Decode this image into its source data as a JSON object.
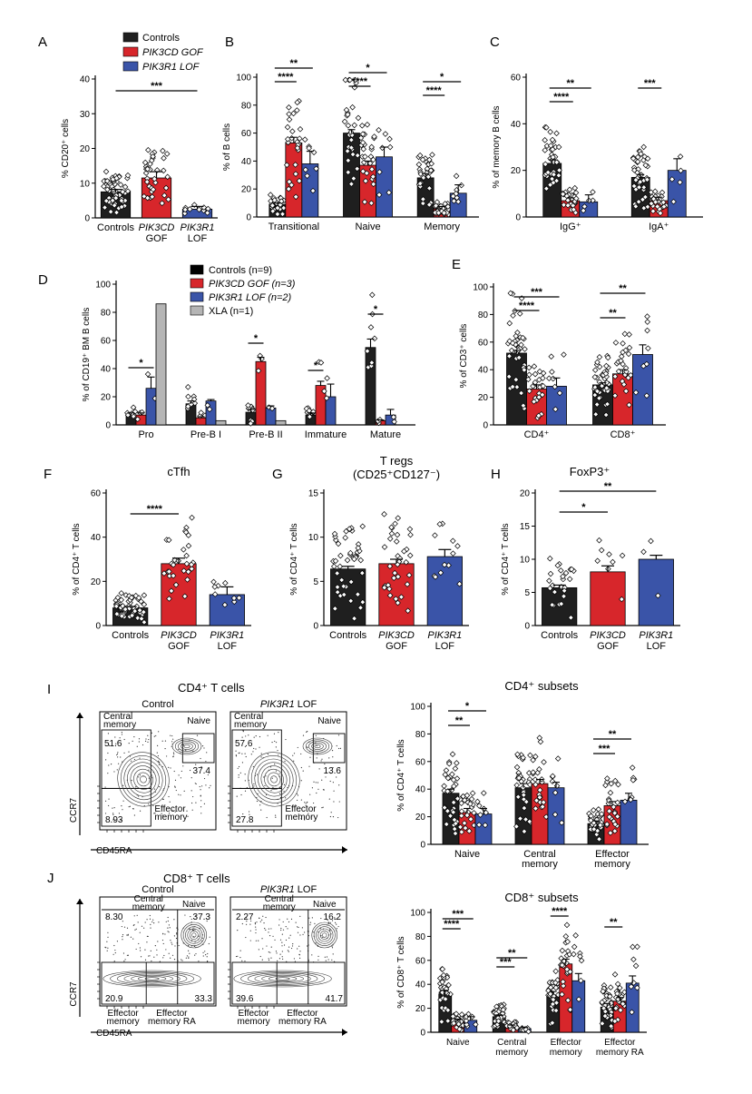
{
  "colors": {
    "controls": "#1f1f1f",
    "gof": "#d7262b",
    "lof": "#3a54a8",
    "xla": "#b5b5b5"
  },
  "legend_main": [
    {
      "label": "Controls",
      "color": "#1f1f1f",
      "italic": false
    },
    {
      "label": "PIK3CD GOF",
      "color": "#d7262b",
      "italic": true
    },
    {
      "label": "PIK3R1 LOF",
      "color": "#3a54a8",
      "italic": true
    }
  ],
  "legend_d": [
    {
      "label": "Controls (n=9)",
      "color": "#000000",
      "italic": false
    },
    {
      "label": "PIK3CD GOF (n=3)",
      "color": "#d7262b",
      "italic": true
    },
    {
      "label": "PIK3R1 LOF (n=2)",
      "color": "#3a54a8",
      "italic": true
    },
    {
      "label": "XLA (n=1)",
      "color": "#b5b5b5",
      "italic": false
    }
  ],
  "chart_data": [
    {
      "id": "A",
      "letter": "A",
      "type": "bar",
      "title": "",
      "ylabel": "% CD20⁺ cells",
      "ylim": [
        0,
        40
      ],
      "yticks": [
        0,
        10,
        20,
        30,
        40
      ],
      "categories": [
        "Controls",
        "PIK3CD\nGOF",
        "PIK3R1\nLOF"
      ],
      "values": [
        7.5,
        11.5,
        2.5
      ],
      "err": [
        0.7,
        1.8,
        0.8
      ],
      "sig": [
        {
          "from": 0,
          "to": 2,
          "label": "***"
        }
      ]
    },
    {
      "id": "B",
      "letter": "B",
      "type": "bar",
      "title": "",
      "ylabel": "% of B cells",
      "ylim": [
        0,
        100
      ],
      "yticks": [
        0,
        20,
        40,
        60,
        80,
        100
      ],
      "groups": [
        "Transitional",
        "Naive",
        "Memory"
      ],
      "series": [
        {
          "name": "Controls",
          "values": [
            9,
            60,
            28
          ],
          "err": [
            1,
            2.5,
            3
          ]
        },
        {
          "name": "PIK3CD GOF",
          "values": [
            53,
            37,
            6
          ],
          "err": [
            4,
            3,
            1.5
          ]
        },
        {
          "name": "PIK3R1 LOF",
          "values": [
            38,
            43,
            17
          ],
          "err": [
            9,
            7,
            6
          ]
        }
      ],
      "sig": [
        {
          "g": 0,
          "from": 0,
          "to": 2,
          "label": "**"
        },
        {
          "g": 0,
          "from": 0,
          "to": 1,
          "label": "****"
        },
        {
          "g": 1,
          "from": 0,
          "to": 2,
          "label": "*"
        },
        {
          "g": 1,
          "from": 0,
          "to": 1,
          "label": "****"
        },
        {
          "g": 2,
          "from": 0,
          "to": 2,
          "label": "*"
        },
        {
          "g": 2,
          "from": 0,
          "to": 1,
          "label": "****"
        }
      ]
    },
    {
      "id": "C",
      "letter": "C",
      "type": "bar",
      "title": "",
      "ylabel": "% of memory B cells",
      "ylim": [
        0,
        60
      ],
      "yticks": [
        0,
        20,
        40,
        60
      ],
      "groups": [
        "IgG⁺",
        "IgA⁺"
      ],
      "series": [
        {
          "name": "Controls",
          "values": [
            23,
            17
          ],
          "err": [
            1.5,
            1.2
          ]
        },
        {
          "name": "PIK3CD GOF",
          "values": [
            7,
            7
          ],
          "err": [
            1.2,
            1.5
          ]
        },
        {
          "name": "PIK3R1 LOF",
          "values": [
            6.5,
            20
          ],
          "err": [
            3,
            5
          ]
        }
      ],
      "sig": [
        {
          "g": 0,
          "from": 0,
          "to": 2,
          "label": "**"
        },
        {
          "g": 0,
          "from": 0,
          "to": 1,
          "label": "****"
        },
        {
          "g": 1,
          "from": 0,
          "to": 1,
          "label": "***"
        }
      ]
    },
    {
      "id": "D",
      "letter": "D",
      "type": "bar",
      "title": "",
      "ylabel": "% of CD19⁺ BM B cells",
      "ylim": [
        0,
        100
      ],
      "yticks": [
        0,
        20,
        40,
        60,
        80,
        100
      ],
      "groups": [
        "Pro",
        "Pre-B I",
        "Pre-B II",
        "Immature",
        "Mature"
      ],
      "series": [
        {
          "name": "Controls (n=9)",
          "values": [
            7,
            15,
            9,
            7,
            55
          ],
          "err": [
            1.5,
            2,
            2,
            1.5,
            6
          ]
        },
        {
          "name": "PIK3CD GOF (n=3)",
          "values": [
            7,
            5,
            45,
            28,
            3
          ],
          "err": [
            1.5,
            0.8,
            3,
            3,
            0.5
          ]
        },
        {
          "name": "PIK3R1 LOF (n=2)",
          "values": [
            26,
            17,
            12,
            20,
            7
          ],
          "err": [
            8,
            1,
            1.5,
            9,
            4
          ]
        },
        {
          "name": "XLA (n=1)",
          "values": [
            86,
            3,
            3,
            0,
            0
          ],
          "err": [
            0,
            0,
            0,
            0,
            0
          ]
        }
      ],
      "sig": [
        {
          "g": 0,
          "from": 0,
          "to": 2,
          "label": "*"
        },
        {
          "g": 2,
          "from": 0,
          "to": 1,
          "label": "*"
        },
        {
          "g": 3,
          "from": 0,
          "to": 1,
          "label": "*"
        },
        {
          "g": 4,
          "from": 0,
          "to": 1,
          "label": "*"
        }
      ]
    },
    {
      "id": "E",
      "letter": "E",
      "type": "bar",
      "title": "",
      "ylabel": "% of CD3⁺ cells",
      "ylim": [
        0,
        100
      ],
      "yticks": [
        0,
        20,
        40,
        60,
        80,
        100
      ],
      "groups": [
        "CD4⁺",
        "CD8⁺"
      ],
      "series": [
        {
          "name": "Controls",
          "values": [
            52,
            29
          ],
          "err": [
            2,
            1.5
          ]
        },
        {
          "name": "PIK3CD GOF",
          "values": [
            26,
            37
          ],
          "err": [
            3,
            3
          ]
        },
        {
          "name": "PIK3R1 LOF",
          "values": [
            28,
            51
          ],
          "err": [
            6,
            7
          ]
        }
      ],
      "sig": [
        {
          "g": 0,
          "from": 0,
          "to": 2,
          "label": "***"
        },
        {
          "g": 0,
          "from": 0,
          "to": 1,
          "label": "****"
        },
        {
          "g": 1,
          "from": 0,
          "to": 2,
          "label": "**"
        },
        {
          "g": 1,
          "from": 0,
          "to": 1,
          "label": "**"
        }
      ]
    },
    {
      "id": "F",
      "letter": "F",
      "type": "bar",
      "title": "cTfh",
      "ylabel": "% of CD4⁺ T cells",
      "ylim": [
        0,
        60
      ],
      "yticks": [
        0,
        20,
        40,
        60
      ],
      "categories": [
        "Controls",
        "PIK3CD\nGOF",
        "PIK3R1\nLOF"
      ],
      "values": [
        8,
        28,
        14
      ],
      "err": [
        0.6,
        2.5,
        3.5
      ],
      "sig": [
        {
          "from": 0,
          "to": 1,
          "label": "****"
        }
      ]
    },
    {
      "id": "G",
      "letter": "G",
      "type": "bar",
      "title": "T regs\n(CD25⁺CD127⁻)",
      "ylabel": "% of CD4⁺ T cells",
      "ylim": [
        0,
        15
      ],
      "yticks": [
        0,
        5,
        10,
        15
      ],
      "categories": [
        "Controls",
        "PIK3CD\nGOF",
        "PIK3R1\nLOF"
      ],
      "values": [
        6.4,
        7.0,
        7.8
      ],
      "err": [
        0.3,
        0.5,
        0.8
      ],
      "sig": []
    },
    {
      "id": "H",
      "letter": "H",
      "type": "bar",
      "title": "FoxP3⁺",
      "ylabel": "% of CD4⁺ T cells",
      "ylim": [
        0,
        20
      ],
      "yticks": [
        0,
        5,
        10,
        15,
        20
      ],
      "categories": [
        "Controls",
        "PIK3CD\nGOF",
        "PIK3R1\nLOF"
      ],
      "values": [
        5.7,
        8.1,
        10.0
      ],
      "err": [
        0.4,
        0.9,
        0.6
      ],
      "sig": [
        {
          "from": 0,
          "to": 1,
          "label": "*"
        },
        {
          "from": 0,
          "to": 2,
          "label": "**"
        }
      ]
    },
    {
      "id": "I",
      "letter": "I",
      "type": "bar",
      "title": "CD4⁺ subsets",
      "ylabel": "% of CD4⁺ T cells",
      "ylim": [
        0,
        100
      ],
      "yticks": [
        0,
        20,
        40,
        60,
        80,
        100
      ],
      "groups": [
        "Naive",
        "Central\nmemory",
        "Effector\nmemory"
      ],
      "series": [
        {
          "name": "Controls",
          "values": [
            37,
            41,
            15
          ],
          "err": [
            3,
            3,
            2
          ]
        },
        {
          "name": "PIK3CD GOF",
          "values": [
            23,
            44,
            28
          ],
          "err": [
            3,
            3,
            3
          ]
        },
        {
          "name": "PIK3R1 LOF",
          "values": [
            22,
            41,
            32
          ],
          "err": [
            4,
            4,
            5
          ]
        }
      ],
      "sig": [
        {
          "g": 0,
          "from": 0,
          "to": 2,
          "label": "*"
        },
        {
          "g": 0,
          "from": 0,
          "to": 1,
          "label": "**"
        },
        {
          "g": 2,
          "from": 0,
          "to": 2,
          "label": "**"
        },
        {
          "g": 2,
          "from": 0,
          "to": 1,
          "label": "***"
        }
      ]
    },
    {
      "id": "J",
      "letter": "J",
      "type": "bar",
      "title": "CD8⁺ subsets",
      "ylabel": "% of CD8⁺ T cells",
      "ylim": [
        0,
        100
      ],
      "yticks": [
        0,
        20,
        40,
        60,
        80,
        100
      ],
      "groups": [
        "Naive",
        "Central\nmemory",
        "Effector\nmemory",
        "Effector\nmemory RA"
      ],
      "series": [
        {
          "name": "Controls",
          "values": [
            32,
            13,
            31,
            21
          ],
          "err": [
            3,
            1.5,
            3,
            3
          ]
        },
        {
          "name": "PIK3CD GOF",
          "values": [
            9,
            5,
            57,
            26
          ],
          "err": [
            2,
            1,
            4,
            3
          ]
        },
        {
          "name": "PIK3R1 LOF",
          "values": [
            10,
            3,
            43,
            41
          ],
          "err": [
            3,
            1,
            6,
            6
          ]
        }
      ],
      "sig": [
        {
          "g": 0,
          "from": 0,
          "to": 2,
          "label": "***"
        },
        {
          "g": 0,
          "from": 0,
          "to": 1,
          "label": "****"
        },
        {
          "g": 1,
          "from": 0,
          "to": 2,
          "label": "**"
        },
        {
          "g": 1,
          "from": 0,
          "to": 1,
          "label": "***"
        },
        {
          "g": 2,
          "from": 0,
          "to": 1,
          "label": "****"
        },
        {
          "g": 3,
          "from": 0,
          "to": 1,
          "label": "**"
        }
      ]
    }
  ],
  "flow": {
    "I": {
      "title": "CD4⁺ T cells",
      "xaxis": "CD45RA",
      "yaxis": "CCR7",
      "plots": [
        {
          "name": "Control",
          "italic": false,
          "q_cm": "51.6",
          "q_n": "37.4",
          "q_em": "8.93",
          "l_cm": "Central\nmemory",
          "l_n": "Naive",
          "l_em": "Effector\nmemory"
        },
        {
          "name": "PIK3R1 LOF",
          "italic": true,
          "q_cm": "57.6",
          "q_n": "13.6",
          "q_em": "27.8",
          "l_cm": "Central\nmemory",
          "l_n": "Naive",
          "l_em": "Effector\nmemory"
        }
      ]
    },
    "J": {
      "title": "CD8⁺ T cells",
      "xaxis": "CD45RA",
      "yaxis": "CCR7",
      "plots": [
        {
          "name": "Control",
          "italic": false,
          "q_cm": "8.30",
          "q_n": "37.3",
          "q_em": "20.9",
          "q_emra": "33.3",
          "l_cm": "Central\nmemory",
          "l_n": "Naive",
          "l_em": "Effector\nmemory",
          "l_emra": "Effector\nmemory RA"
        },
        {
          "name": "PIK3R1 LOF",
          "italic": true,
          "q_cm": "2.27",
          "q_n": "16.2",
          "q_em": "39.6",
          "q_emra": "41.7",
          "l_cm": "Central\nmemory",
          "l_n": "Naive",
          "l_em": "Effector\nmemory",
          "l_emra": "Effector\nmemory RA"
        }
      ]
    }
  }
}
